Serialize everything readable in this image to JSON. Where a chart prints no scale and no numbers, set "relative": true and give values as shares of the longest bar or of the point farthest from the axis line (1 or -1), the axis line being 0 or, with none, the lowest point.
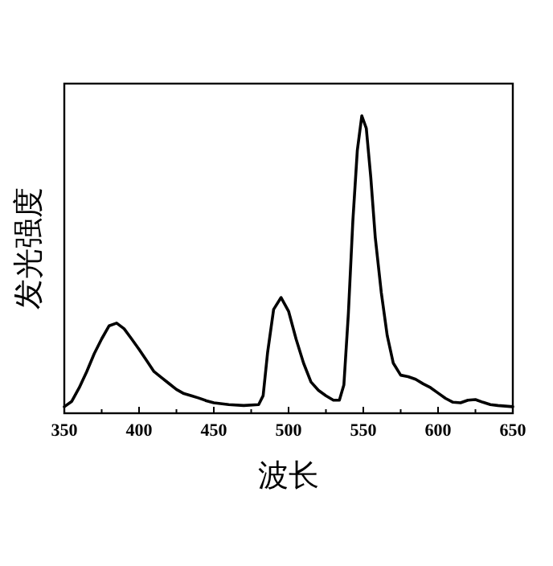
{
  "chart_data": {
    "type": "line",
    "xlabel": "波长",
    "ylabel": "发光强度",
    "relative": true,
    "xlim": [
      350,
      650
    ],
    "xticks": [
      350,
      400,
      450,
      500,
      550,
      600,
      650
    ],
    "color": "#000000",
    "grid": false,
    "line_style": "solid",
    "x": [
      350,
      355,
      360,
      365,
      370,
      375,
      380,
      385,
      390,
      395,
      400,
      405,
      410,
      415,
      420,
      425,
      430,
      435,
      440,
      445,
      450,
      460,
      470,
      480,
      483,
      486,
      490,
      495,
      500,
      505,
      510,
      515,
      520,
      525,
      530,
      534,
      537,
      540,
      543,
      546,
      549,
      552,
      555,
      558,
      562,
      566,
      570,
      575,
      580,
      585,
      590,
      595,
      600,
      605,
      610,
      615,
      620,
      625,
      630,
      635,
      640,
      650
    ],
    "values": [
      0.022,
      0.04,
      0.086,
      0.14,
      0.2,
      0.25,
      0.294,
      0.303,
      0.284,
      0.25,
      0.215,
      0.178,
      0.14,
      0.12,
      0.1,
      0.08,
      0.066,
      0.059,
      0.051,
      0.042,
      0.035,
      0.029,
      0.026,
      0.029,
      0.059,
      0.205,
      0.349,
      0.389,
      0.343,
      0.25,
      0.169,
      0.105,
      0.077,
      0.059,
      0.044,
      0.044,
      0.095,
      0.334,
      0.646,
      0.884,
      1.0,
      0.958,
      0.793,
      0.591,
      0.407,
      0.261,
      0.169,
      0.128,
      0.123,
      0.114,
      0.099,
      0.086,
      0.068,
      0.05,
      0.037,
      0.035,
      0.044,
      0.046,
      0.037,
      0.029,
      0.026,
      0.022
    ]
  }
}
